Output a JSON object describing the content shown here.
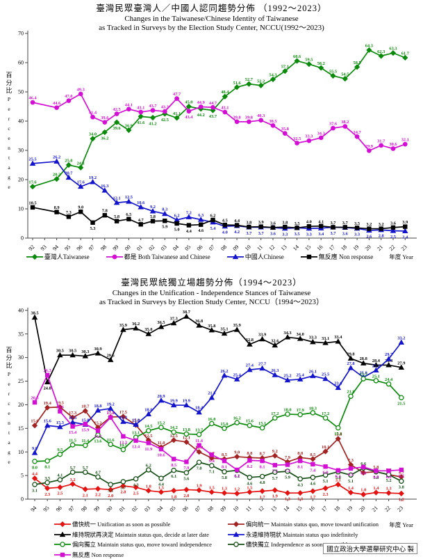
{
  "page": {
    "x_axis_label": "年度 Year",
    "y_axis_label_zh": "百分比",
    "y_axis_label_en": "Percentage",
    "footer": "國立政治大學選舉研究中心 製"
  },
  "chart_data": [
    {
      "type": "line",
      "title": "臺灣民眾臺灣人／中國人認同趨勢分佈 （1992～2023）",
      "subtitle1": "Changes in the Taiwanese/Chinese Identity of Taiwanese",
      "subtitle2": "as Tracked in Surveys by the Election Study Center, NCCU(1992～2023)",
      "xlabel": "年度 Year",
      "ylabel": "百分比 Percentage",
      "ylim": [
        0,
        70
      ],
      "yticks": [
        0,
        10,
        20,
        30,
        40,
        50,
        60,
        70
      ],
      "grid": false,
      "legend_position": "bottom",
      "categories": [
        "92",
        "93",
        "94",
        "95",
        "96",
        "97",
        "98",
        "99",
        "00",
        "01",
        "02",
        "03",
        "04",
        "05",
        "06",
        "07",
        "08",
        "09",
        "10",
        "11",
        "12",
        "13",
        "14",
        "15",
        "16",
        "17",
        "18",
        "19",
        "20",
        "21",
        "22",
        "23"
      ],
      "series": [
        {
          "name": "臺灣人Taiwanese",
          "color": "#0a8a0a",
          "marker": "diamond",
          "hollow": false,
          "values": [
            "17.6",
            null,
            "20.2",
            "25.0",
            "24.1",
            "34.0",
            "36.2",
            "39.6",
            "36.9",
            "41.6",
            "41.2",
            "42.5",
            "41.1",
            "45.0",
            "44.2",
            "43.7",
            "48.4",
            "51.6",
            "52.7",
            "52.2",
            "54.3",
            "57.1",
            "60.6",
            "59.5",
            "58.2",
            "55.5",
            "54.5",
            "58.5",
            "64.3",
            "62.3",
            "63.3",
            "61.7"
          ]
        },
        {
          "name": "都是 Both Taiwanese and Chinese",
          "color": "#d40fd4",
          "marker": "circle",
          "hollow": false,
          "values": [
            "46.4",
            null,
            "44.6",
            "47.0",
            "49.3",
            "41.4",
            "39.6",
            "42.5",
            "44.1",
            "43.1",
            "43.7",
            "43.3",
            "47.7",
            "43.4",
            "44.9",
            "44.7",
            "43.1",
            "39.8",
            "39.8",
            "40.3",
            "38.5",
            "35.8",
            "32.5",
            "33.3",
            "34.3",
            "37.6",
            "38.2",
            "34.7",
            "29.9",
            "31.7",
            "30.6",
            "32.1"
          ]
        },
        {
          "name": "中國人Chinese",
          "color": "#1414cc",
          "marker": "triangle",
          "hollow": false,
          "values": [
            "25.5",
            null,
            "26.2",
            "20.7",
            "17.6",
            "19.2",
            "16.3",
            "12.1",
            "12.5",
            "10.6",
            "9.2",
            "8.3",
            "6.2",
            "7.2",
            "6.3",
            "5.4",
            "4.0",
            "4.2",
            "3.7",
            "3.7",
            "3.6",
            "3.3",
            "3.5",
            "3.3",
            "3.4",
            "3.7",
            "3.6",
            "3.3",
            "2.6",
            "2.8",
            "2.5",
            "2.4"
          ]
        },
        {
          "name": "無反應 Non response",
          "color": "#000000",
          "marker": "square",
          "hollow": false,
          "values": [
            "10.5",
            null,
            "8.9",
            "7.3",
            "9.0",
            "5.3",
            "7.8",
            "5.8",
            "6.5",
            "4.7",
            "5.8",
            "5.9",
            "5.0",
            "4.4",
            "4.6",
            "6.2",
            "4.5",
            "4.4",
            "3.8",
            "3.9",
            "3.6",
            "3.8",
            "3.5",
            "4.0",
            "4.1",
            "3.7",
            "3.7",
            "3.5",
            "3.2",
            "3.2",
            "3.6",
            "3.9"
          ]
        }
      ]
    },
    {
      "type": "line",
      "title": "臺灣民眾統獨立場趨勢分佈（1994～2023）",
      "subtitle1": "Changes in the Unification - Independence Stances of Taiwanese",
      "subtitle2": "as Tracked in Surveys by Election Study Center, NCCU（1994～2023）",
      "xlabel": "年度 Year",
      "ylabel": "百分比 Percentage",
      "ylim": [
        0,
        40
      ],
      "yticks": [
        0,
        5,
        10,
        15,
        20,
        25,
        30,
        35,
        40
      ],
      "grid": false,
      "legend_position": "bottom",
      "categories": [
        "94",
        "95",
        "96",
        "97",
        "98",
        "99",
        "00",
        "01",
        "02",
        "03",
        "04",
        "05",
        "06",
        "07",
        "08",
        "09",
        "10",
        "11",
        "12",
        "13",
        "14",
        "15",
        "16",
        "17",
        "18",
        "19",
        "20",
        "21",
        "22",
        "23"
      ],
      "series": [
        {
          "name": "儘快統一 Unification as soon as possible",
          "color": "#e51212",
          "marker": "diamond",
          "hollow": false,
          "values": [
            "4.4",
            "2.3",
            "2.5",
            "3.2",
            "2.1",
            "2.2",
            "2.0",
            "2.8",
            "2.5",
            "1.8",
            "1.5",
            "1.8",
            "2.0",
            "1.9",
            "1.5",
            "1.3",
            "1.2",
            "1.5",
            "1.7",
            "1.9",
            "1.3",
            "1.3",
            "1.7",
            "2.3",
            "3.1",
            "1.4",
            "1.0",
            "1.4",
            "1.3",
            "1.2"
          ]
        },
        {
          "name": "偏向統一 Maintain status quo, move toward unification",
          "color": "#a32222",
          "marker": "diamond",
          "hollow": false,
          "values": [
            "15.6",
            "19.4",
            "19.5",
            "17.3",
            "18.7",
            "15.2",
            "17.4",
            "17.5",
            "15.7",
            "12.5",
            "11.0",
            "12.5",
            "12.1",
            "10.0",
            "8.7",
            "8.5",
            "9.0",
            "8.8",
            "8.7",
            "9.2",
            "7.9",
            "8.8",
            "8.5",
            "10.1",
            "12.8",
            "7.3",
            "5.6",
            "5.8",
            "5.2",
            "4.7"
          ]
        },
        {
          "name": "維持現狀再決定 Maintain status quo, decide at later date",
          "color": "#000000",
          "marker": "triangle",
          "hollow": false,
          "values": [
            "38.5",
            "24.8",
            "30.5",
            "30.5",
            "30.3",
            "30.9",
            "29.5",
            "35.9",
            "36.2",
            "35.0",
            "36.5",
            "37.3",
            "38.7",
            "36.8",
            "35.8",
            "35.1",
            "35.9",
            "32.8",
            "33.9",
            "32.6",
            "34.3",
            "34.0",
            "33.3",
            "33.1",
            "33.4",
            "29.8",
            "28.8",
            "28.4",
            "28.4",
            "27.9"
          ]
        },
        {
          "name": "永遠維持現狀 Maintain status quo indefinitely",
          "color": "#1414cc",
          "marker": "triangle",
          "hollow": false,
          "values": [
            "9.8",
            "15.6",
            "15.3",
            "16.3",
            "15.8",
            "18.8",
            "19.2",
            "16.4",
            "15.8",
            "18.0",
            "20.9",
            "19.9",
            "19.9",
            "18.4",
            "21.5",
            "26.2",
            "25.4",
            "27.4",
            "27.7",
            "26.3",
            "25.2",
            "25.4",
            "26.1",
            "25.5",
            "23.6",
            "27.8",
            "25.8",
            "27.3",
            "29.7",
            "33.2"
          ]
        },
        {
          "name": "偏向獨立 Maintain status quo, move toward independence",
          "color": "#0a8a0a",
          "marker": "circle",
          "hollow": true,
          "values": [
            "8.0",
            "8.1",
            "9.5",
            "11.5",
            "11.4",
            "13.6",
            "11.6",
            "10.5",
            "13.1",
            "14.5",
            "15.2",
            "14.2",
            "13.8",
            "13.7",
            "16.0",
            "15.0",
            "16.2",
            "15.6",
            "15.1",
            "17.2",
            "18.0",
            "17.9",
            "18.3",
            "17.2",
            "15.1",
            "21.8",
            "25.5",
            "25.1",
            "24.4",
            "21.5"
          ]
        },
        {
          "name": "儘快獨立 Independence as soon as possible",
          "color": "#134d13",
          "marker": "circle",
          "hollow": true,
          "values": [
            "3.1",
            "3.5",
            "4.1",
            "5.7",
            "5.7",
            "4.7",
            "3.1",
            "3.7",
            "4.3",
            "6.2",
            "4.4",
            "6.1",
            "5.6",
            "7.8",
            "7.1",
            "5.8",
            "6.1",
            "4.6",
            "4.8",
            "5.7",
            "5.9",
            "4.3",
            "4.6",
            "5.1",
            "5.8",
            "5.1",
            "6.6",
            "5.8",
            "5.2",
            "3.8"
          ]
        },
        {
          "name": "無反應 Non response",
          "color": "#d40fd4",
          "marker": "square",
          "hollow": false,
          "values": [
            "20.5",
            "26.3",
            "18.6",
            "15.4",
            "15.9",
            "14.5",
            "17.3",
            "13.3",
            "12.4",
            "11.9",
            "10.6",
            "8.5",
            "7.9",
            "11.4",
            "9.4",
            "8.1",
            "6.2",
            "8.2",
            "8.1",
            "7.2",
            "7.3",
            "8.1",
            "7.4",
            "6.9",
            "6.1",
            "6.5",
            "6.8",
            "6.0",
            "6.0",
            "6.2"
          ]
        }
      ]
    }
  ]
}
